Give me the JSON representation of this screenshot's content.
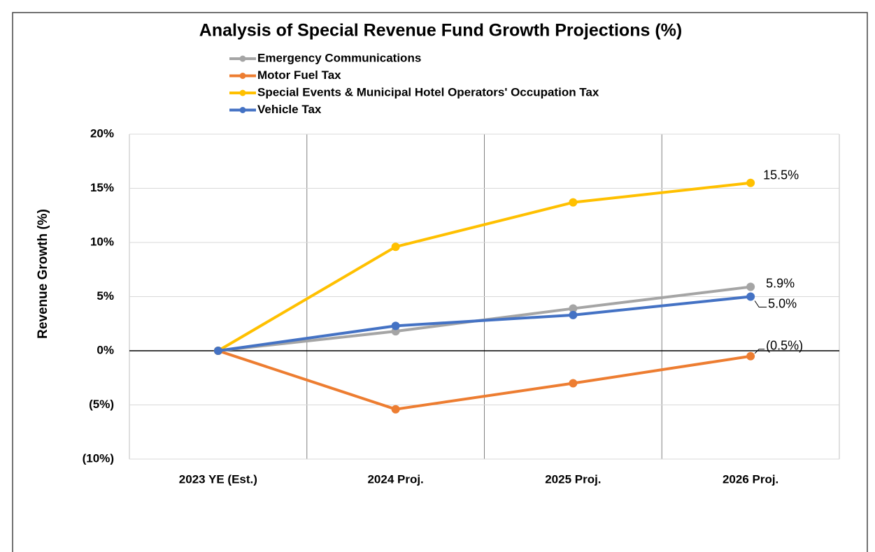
{
  "chart_data": {
    "type": "line",
    "title": "Analysis of Special Revenue Fund Growth Projections (%)",
    "y_axis_label": "Revenue Growth (%)",
    "categories": [
      "2023 YE (Est.)",
      "2024 Proj.",
      "2025 Proj.",
      "2026 Proj."
    ],
    "series": [
      {
        "name": "Emergency Communications",
        "color": "#a5a5a5",
        "values": [
          0,
          1.8,
          3.9,
          5.9
        ],
        "value_labels": [
          null,
          null,
          null,
          "5.9%"
        ]
      },
      {
        "name": "Motor Fuel Tax",
        "color": "#ed7d31",
        "values": [
          0,
          -5.4,
          -3.0,
          -0.5
        ],
        "value_labels": [
          null,
          null,
          null,
          "(0.5%)"
        ]
      },
      {
        "name": "Special Events & Municipal Hotel Operators' Occupation Tax",
        "color": "#ffc000",
        "values": [
          0,
          9.6,
          13.7,
          15.5
        ],
        "value_labels": [
          null,
          null,
          null,
          "15.5%"
        ]
      },
      {
        "name": "Vehicle Tax",
        "color": "#4472c4",
        "values": [
          0,
          2.3,
          3.3,
          5.0
        ],
        "value_labels": [
          null,
          null,
          null,
          "5.0%"
        ]
      }
    ],
    "ylim": [
      -10,
      20
    ],
    "yticks": [
      {
        "value": -10,
        "label": "(10%)"
      },
      {
        "value": -5,
        "label": "(5%)"
      },
      {
        "value": 0,
        "label": "0%"
      },
      {
        "value": 5,
        "label": "5%"
      },
      {
        "value": 10,
        "label": "10%"
      },
      {
        "value": 15,
        "label": "15%"
      },
      {
        "value": 20,
        "label": "20%"
      }
    ],
    "grid": true,
    "legend": "top",
    "negative_label_color": "#ff0000"
  }
}
